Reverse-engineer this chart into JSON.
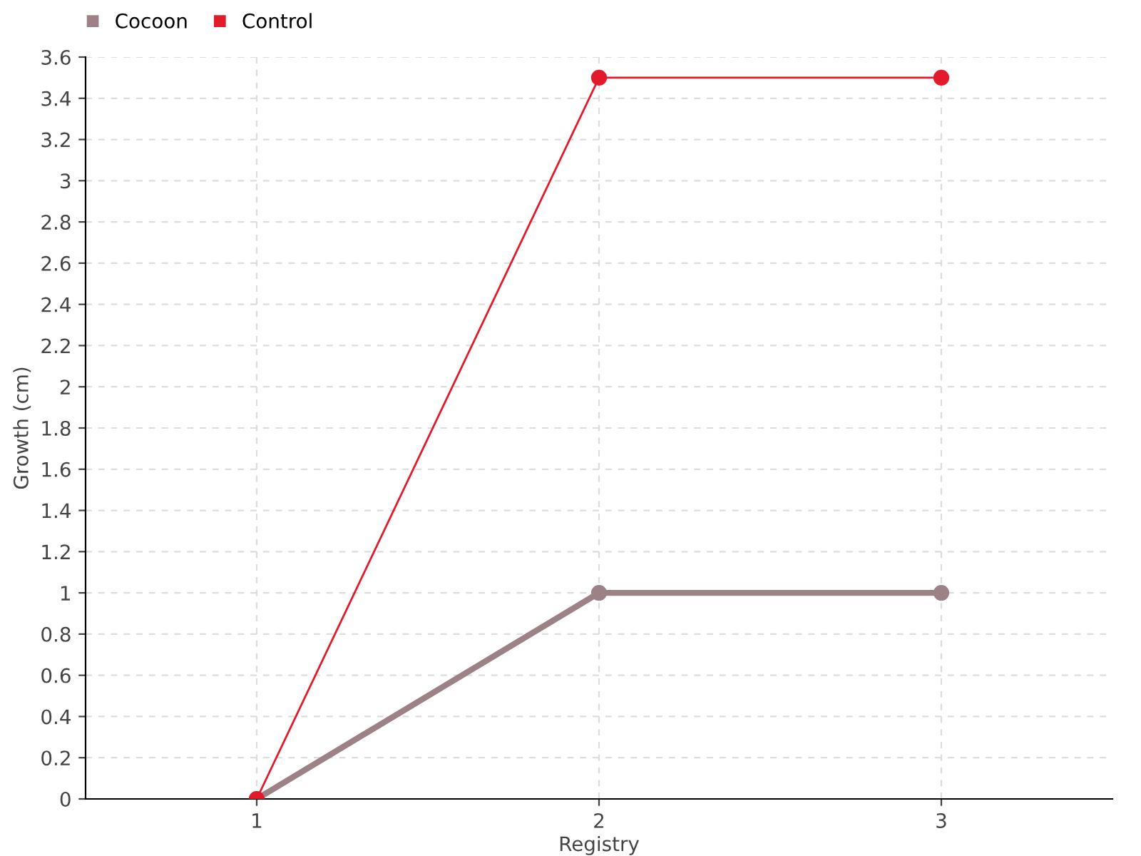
{
  "chart_data": {
    "type": "line",
    "xlabel": "Registry",
    "ylabel": "Growth (cm)",
    "categories": [
      "1",
      "2",
      "3"
    ],
    "series": [
      {
        "name": "Cocoon",
        "color": "#9c8287",
        "values": [
          0,
          1,
          1
        ]
      },
      {
        "name": "Control",
        "color": "#e31a2a",
        "values": [
          0,
          3.5,
          3.5
        ]
      }
    ],
    "ylim": [
      0,
      3.6
    ],
    "yticks": [
      0,
      0.2,
      0.4,
      0.6,
      0.8,
      1,
      1.2,
      1.4,
      1.6,
      1.8,
      2,
      2.2,
      2.4,
      2.6,
      2.8,
      3,
      3.2,
      3.4,
      3.6
    ],
    "grid": true,
    "legend": "top left",
    "marker": "circle",
    "line_style": "solid"
  }
}
